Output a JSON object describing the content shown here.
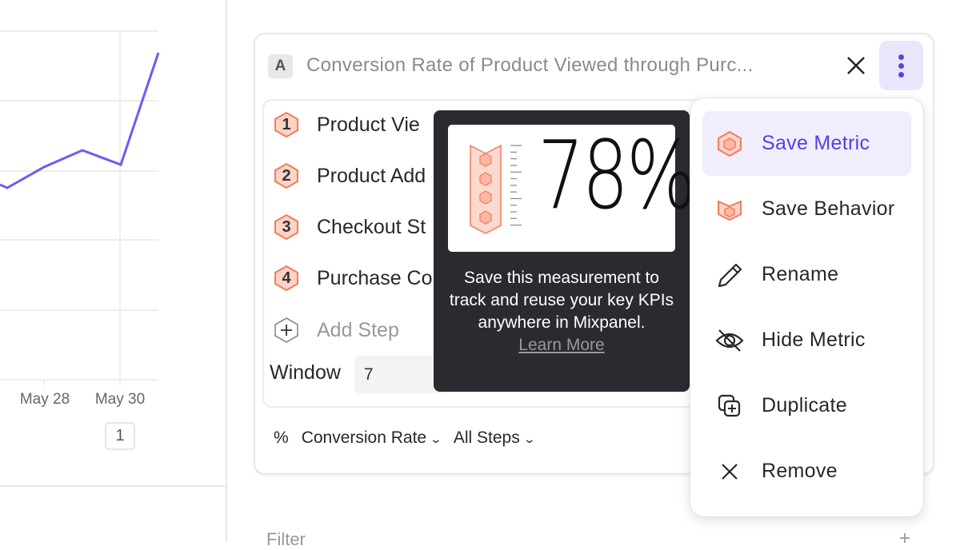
{
  "chart": {
    "x_tick_labels": [
      "May 28",
      "May 30"
    ],
    "badge": "1",
    "line_color": "#7159f5"
  },
  "card": {
    "badge": "A",
    "title": "Conversion Rate of Product Viewed through Purc...",
    "steps": [
      {
        "num": "1",
        "label": "Product Vie"
      },
      {
        "num": "2",
        "label": "Product Add"
      },
      {
        "num": "3",
        "label": "Checkout St"
      },
      {
        "num": "4",
        "label": "Purchase Co"
      }
    ],
    "add_step": "Add Step",
    "window_label": "Window",
    "window_value": "7",
    "measure_icon": "%",
    "measure": "Conversion Rate",
    "steps_select": "All Steps",
    "step_color": "#f47c5c"
  },
  "tooltip": {
    "big_number": "78%",
    "text": "Save this measurement to track and reuse your key KPIs anywhere in Mixpanel.",
    "link": "Learn More"
  },
  "menu": {
    "items": [
      {
        "label": "Save Metric",
        "icon": "hexagon-icon",
        "active": true
      },
      {
        "label": "Save Behavior",
        "icon": "behavior-icon"
      },
      {
        "label": "Rename",
        "icon": "pencil-icon"
      },
      {
        "label": "Hide Metric",
        "icon": "eye-off-icon"
      },
      {
        "label": "Duplicate",
        "icon": "duplicate-icon"
      },
      {
        "label": "Remove",
        "icon": "close-icon"
      }
    ],
    "accent": "#5540e6"
  },
  "filter": {
    "label": "Filter",
    "add": "+"
  }
}
